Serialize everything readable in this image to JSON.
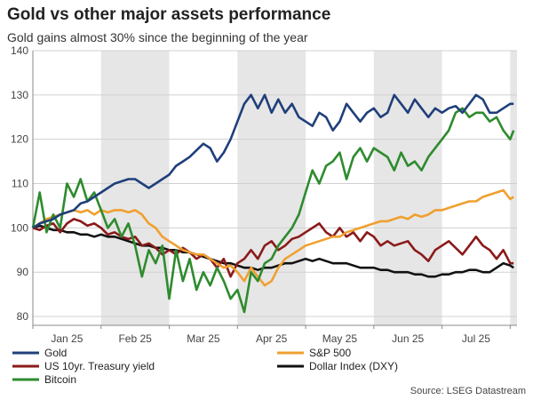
{
  "title": "Gold vs other major assets performance",
  "subtitle": "Gold gains almost 30% since the beginning of the year",
  "source": "Source: LSEG Datastream",
  "chart_data": {
    "type": "line",
    "ylim": [
      78,
      140
    ],
    "yticks": [
      80,
      90,
      100,
      110,
      120,
      130,
      140
    ],
    "xlim": [
      0,
      7.1
    ],
    "months": [
      {
        "label": "Jan 25",
        "pos": 0.5
      },
      {
        "label": "Feb 25",
        "pos": 1.5
      },
      {
        "label": "Mar 25",
        "pos": 2.5
      },
      {
        "label": "Apr 25",
        "pos": 3.5
      },
      {
        "label": "May 25",
        "pos": 4.5
      },
      {
        "label": "Jun 25",
        "pos": 5.5
      },
      {
        "label": "Jul 25",
        "pos": 6.5
      }
    ],
    "shaded_months": [
      [
        1,
        2
      ],
      [
        3,
        4
      ],
      [
        5,
        6
      ],
      [
        7,
        7.1
      ]
    ],
    "grid": "horizontal",
    "legend_position": "bottom",
    "series": [
      {
        "name": "Gold",
        "color": "#1f3f7a",
        "x": [
          0,
          0.1,
          0.2,
          0.3,
          0.4,
          0.5,
          0.6,
          0.7,
          0.8,
          0.9,
          1.0,
          1.1,
          1.2,
          1.3,
          1.4,
          1.5,
          1.6,
          1.7,
          1.8,
          1.9,
          2.0,
          2.1,
          2.2,
          2.3,
          2.4,
          2.5,
          2.6,
          2.7,
          2.8,
          2.9,
          3.0,
          3.1,
          3.2,
          3.3,
          3.4,
          3.5,
          3.6,
          3.7,
          3.8,
          3.9,
          4.0,
          4.1,
          4.2,
          4.3,
          4.4,
          4.5,
          4.6,
          4.7,
          4.8,
          4.9,
          5.0,
          5.1,
          5.2,
          5.3,
          5.4,
          5.5,
          5.6,
          5.7,
          5.8,
          5.9,
          6.0,
          6.1,
          6.2,
          6.3,
          6.4,
          6.5,
          6.6,
          6.7,
          6.8,
          6.9,
          7.0,
          7.05
        ],
        "y": [
          100,
          101,
          101.5,
          102,
          103,
          103.5,
          104,
          105.5,
          106,
          107,
          108,
          109,
          110,
          110.5,
          111,
          111,
          110,
          109,
          110,
          111,
          112,
          114,
          115,
          116,
          117.5,
          119,
          118,
          115,
          117,
          120,
          124,
          128,
          130,
          127,
          130,
          126,
          129,
          126,
          128,
          125,
          124,
          123,
          126,
          125,
          122,
          124,
          128,
          126,
          124,
          126,
          127,
          125,
          126,
          130,
          128,
          126,
          129,
          127,
          125,
          127,
          126,
          127,
          127.5,
          126,
          128,
          130,
          129,
          126,
          126,
          127,
          128,
          128
        ]
      },
      {
        "name": "S&P 500",
        "color": "#f0a030",
        "x": [
          0,
          0.1,
          0.2,
          0.3,
          0.4,
          0.5,
          0.6,
          0.7,
          0.8,
          0.9,
          1.0,
          1.1,
          1.2,
          1.3,
          1.4,
          1.5,
          1.6,
          1.7,
          1.8,
          1.9,
          2.0,
          2.1,
          2.2,
          2.3,
          2.4,
          2.5,
          2.6,
          2.7,
          2.8,
          2.9,
          3.0,
          3.1,
          3.2,
          3.3,
          3.4,
          3.5,
          3.6,
          3.7,
          3.8,
          3.9,
          4.0,
          4.1,
          4.2,
          4.3,
          4.4,
          4.5,
          4.6,
          4.7,
          4.8,
          4.9,
          5.0,
          5.1,
          5.2,
          5.3,
          5.4,
          5.5,
          5.6,
          5.7,
          5.8,
          5.9,
          6.0,
          6.1,
          6.2,
          6.3,
          6.4,
          6.5,
          6.6,
          6.7,
          6.8,
          6.9,
          7.0,
          7.05
        ],
        "y": [
          100,
          101,
          102,
          102.5,
          103,
          103.5,
          104,
          103.5,
          104,
          103,
          104,
          103.5,
          104,
          104,
          103.5,
          104,
          103,
          101,
          100,
          98,
          97,
          96,
          95,
          94.5,
          94,
          94,
          93,
          92,
          91,
          91.5,
          90,
          88,
          91,
          89,
          87,
          88,
          91,
          93,
          94,
          95,
          96,
          96.5,
          97,
          97.5,
          98,
          98,
          99,
          99.5,
          100,
          100.5,
          101,
          101.5,
          101.5,
          102,
          102.5,
          102,
          103,
          102.5,
          103,
          104,
          104,
          104.5,
          105,
          105.5,
          106,
          106,
          107,
          107.5,
          108,
          108.5,
          106.5,
          107
        ]
      },
      {
        "name": "US 10yr. Treasury yield",
        "color": "#8b1a1a",
        "x": [
          0,
          0.1,
          0.2,
          0.3,
          0.4,
          0.5,
          0.6,
          0.7,
          0.8,
          0.9,
          1.0,
          1.1,
          1.2,
          1.3,
          1.4,
          1.5,
          1.6,
          1.7,
          1.8,
          1.9,
          2.0,
          2.1,
          2.2,
          2.3,
          2.4,
          2.5,
          2.6,
          2.7,
          2.8,
          2.9,
          3.0,
          3.1,
          3.2,
          3.3,
          3.4,
          3.5,
          3.6,
          3.7,
          3.8,
          3.9,
          4.0,
          4.1,
          4.2,
          4.3,
          4.4,
          4.5,
          4.6,
          4.7,
          4.8,
          4.9,
          5.0,
          5.1,
          5.2,
          5.3,
          5.4,
          5.5,
          5.6,
          5.7,
          5.8,
          5.9,
          6.0,
          6.1,
          6.2,
          6.3,
          6.4,
          6.5,
          6.6,
          6.7,
          6.8,
          6.9,
          7.0,
          7.05
        ],
        "y": [
          100,
          99.5,
          100.5,
          101,
          99,
          101,
          102,
          101.5,
          100.5,
          101,
          100,
          98.5,
          99,
          98,
          97.5,
          98,
          96,
          96.5,
          95.5,
          94,
          95,
          94,
          95.5,
          94.5,
          93,
          94,
          93,
          91,
          93,
          89,
          92,
          93,
          95,
          93,
          96,
          97,
          95,
          96,
          97.5,
          98,
          99,
          100,
          101,
          99,
          98,
          100,
          98,
          99,
          97,
          99,
          98,
          96,
          97,
          96,
          96.5,
          97,
          95,
          94,
          92.5,
          95,
          96,
          97,
          95.5,
          94,
          96,
          98,
          96,
          95,
          93,
          95,
          92,
          92
        ]
      },
      {
        "name": "Dollar Index (DXY)",
        "color": "#111111",
        "x": [
          0,
          0.1,
          0.2,
          0.3,
          0.4,
          0.5,
          0.6,
          0.7,
          0.8,
          0.9,
          1.0,
          1.1,
          1.2,
          1.3,
          1.4,
          1.5,
          1.6,
          1.7,
          1.8,
          1.9,
          2.0,
          2.1,
          2.2,
          2.3,
          2.4,
          2.5,
          2.6,
          2.7,
          2.8,
          2.9,
          3.0,
          3.1,
          3.2,
          3.3,
          3.4,
          3.5,
          3.6,
          3.7,
          3.8,
          3.9,
          4.0,
          4.1,
          4.2,
          4.3,
          4.4,
          4.5,
          4.6,
          4.7,
          4.8,
          4.9,
          5.0,
          5.1,
          5.2,
          5.3,
          5.4,
          5.5,
          5.6,
          5.7,
          5.8,
          5.9,
          6.0,
          6.1,
          6.2,
          6.3,
          6.4,
          6.5,
          6.6,
          6.7,
          6.8,
          6.9,
          7.0,
          7.05
        ],
        "y": [
          100,
          100.5,
          100,
          99.5,
          99.5,
          99,
          99,
          98.5,
          98.5,
          98,
          98.5,
          98,
          98,
          97.5,
          97,
          96.5,
          96,
          96,
          95.5,
          95.5,
          95,
          95,
          94.5,
          94.5,
          94,
          93.5,
          93,
          92.5,
          92,
          92,
          91.5,
          91,
          91,
          90.5,
          91,
          91,
          91.5,
          92,
          92,
          92.5,
          93,
          92.5,
          93,
          92.5,
          92,
          92,
          92,
          91.5,
          91,
          91,
          91,
          90.5,
          90.5,
          90,
          90,
          90,
          89.5,
          89.5,
          89,
          89,
          89.5,
          89.5,
          90,
          90,
          90.5,
          90.5,
          90,
          90,
          91,
          92,
          91.5,
          91
        ]
      },
      {
        "name": "Bitcoin",
        "color": "#2e8b2e",
        "x": [
          0,
          0.1,
          0.2,
          0.3,
          0.4,
          0.5,
          0.6,
          0.7,
          0.8,
          0.9,
          1.0,
          1.1,
          1.2,
          1.3,
          1.4,
          1.5,
          1.6,
          1.7,
          1.8,
          1.9,
          2.0,
          2.1,
          2.2,
          2.3,
          2.4,
          2.5,
          2.6,
          2.7,
          2.8,
          2.9,
          3.0,
          3.1,
          3.2,
          3.3,
          3.4,
          3.5,
          3.6,
          3.7,
          3.8,
          3.9,
          4.0,
          4.1,
          4.2,
          4.3,
          4.4,
          4.5,
          4.6,
          4.7,
          4.8,
          4.9,
          5.0,
          5.1,
          5.2,
          5.3,
          5.4,
          5.5,
          5.6,
          5.7,
          5.8,
          5.9,
          6.0,
          6.1,
          6.2,
          6.3,
          6.4,
          6.5,
          6.6,
          6.7,
          6.8,
          6.9,
          7.0,
          7.05
        ],
        "y": [
          100,
          108,
          99,
          103,
          100,
          110,
          107,
          111,
          106,
          108,
          104,
          100,
          102,
          98,
          101,
          96,
          89,
          95,
          92,
          96,
          84,
          95,
          88,
          93,
          86,
          90,
          87,
          91,
          88,
          84,
          86,
          81,
          90,
          88,
          92,
          93,
          96,
          98,
          100,
          103,
          108,
          113,
          110,
          114,
          115,
          117,
          111,
          116,
          118,
          115,
          118,
          117,
          116,
          113,
          117,
          114,
          115,
          113,
          116,
          118,
          120,
          122,
          126,
          127,
          125,
          126,
          126,
          124,
          125,
          122,
          120,
          122
        ]
      }
    ]
  }
}
